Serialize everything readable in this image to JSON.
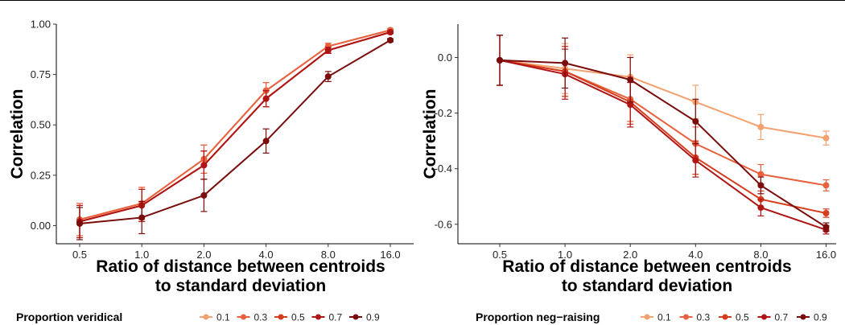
{
  "chart_data": [
    {
      "type": "line",
      "ylabel": "Correlation",
      "xlabel_line1": "Ratio of distance between centroids",
      "xlabel_line2": "to standard deviation",
      "categories": [
        "0.5",
        "1.0",
        "2.0",
        "4.0",
        "8.0",
        "16.0"
      ],
      "ylim": [
        -0.09,
        1.0
      ],
      "yticks": [
        0.0,
        0.25,
        0.5,
        0.75,
        1.0
      ],
      "ytick_labels": [
        "0.00",
        "0.25",
        "0.50",
        "0.75",
        "1.00"
      ],
      "legend_title": "Proportion veridical",
      "legend_position": "bottom",
      "series": [
        {
          "name": "0.1",
          "color": "#f4a170",
          "values": [
            0.03,
            0.11,
            0.33,
            0.67,
            0.89,
            0.97
          ],
          "errors": [
            0.08,
            0.08,
            0.07,
            0.04,
            0.015,
            0.007
          ]
        },
        {
          "name": "0.3",
          "color": "#e8613f",
          "values": [
            0.03,
            0.11,
            0.33,
            0.67,
            0.89,
            0.97
          ],
          "errors": [
            0.08,
            0.08,
            0.07,
            0.04,
            0.015,
            0.007
          ]
        },
        {
          "name": "0.5",
          "color": "#d63d1c",
          "values": [
            0.02,
            0.1,
            0.3,
            0.63,
            0.87,
            0.96
          ],
          "errors": [
            0.08,
            0.08,
            0.07,
            0.04,
            0.015,
            0.007
          ]
        },
        {
          "name": "0.7",
          "color": "#b01515",
          "values": [
            0.02,
            0.1,
            0.3,
            0.63,
            0.87,
            0.96
          ],
          "errors": [
            0.08,
            0.08,
            0.07,
            0.04,
            0.015,
            0.007
          ]
        },
        {
          "name": "0.9",
          "color": "#7a0c0c",
          "values": [
            0.01,
            0.04,
            0.15,
            0.42,
            0.74,
            0.92
          ],
          "errors": [
            0.08,
            0.08,
            0.08,
            0.06,
            0.025,
            0.008
          ]
        }
      ]
    },
    {
      "type": "line",
      "ylabel": "Correlation",
      "xlabel_line1": "Ratio of distance between centroids",
      "xlabel_line2": "to standard deviation",
      "categories": [
        "0.5",
        "1.0",
        "2.0",
        "4.0",
        "8.0",
        "16.0"
      ],
      "ylim": [
        -0.67,
        0.12
      ],
      "yticks": [
        -0.6,
        -0.4,
        -0.2,
        0.0
      ],
      "ytick_labels": [
        "-0.6",
        "-0.4",
        "-0.2",
        "0.0"
      ],
      "legend_title": "Proportion neg−raising",
      "legend_position": "bottom",
      "series": [
        {
          "name": "0.1",
          "color": "#f4a170",
          "values": [
            -0.01,
            -0.04,
            -0.07,
            -0.16,
            -0.25,
            -0.29
          ],
          "errors": [
            0.09,
            0.09,
            0.08,
            0.06,
            0.045,
            0.025
          ]
        },
        {
          "name": "0.3",
          "color": "#e8613f",
          "values": [
            -0.01,
            -0.05,
            -0.15,
            -0.31,
            -0.42,
            -0.46
          ],
          "errors": [
            0.09,
            0.09,
            0.08,
            0.06,
            0.035,
            0.02
          ]
        },
        {
          "name": "0.5",
          "color": "#d63d1c",
          "values": [
            -0.01,
            -0.05,
            -0.16,
            -0.36,
            -0.51,
            -0.56
          ],
          "errors": [
            0.09,
            0.09,
            0.08,
            0.06,
            0.03,
            0.015
          ]
        },
        {
          "name": "0.7",
          "color": "#b01515",
          "values": [
            -0.01,
            -0.06,
            -0.17,
            -0.37,
            -0.54,
            -0.62
          ],
          "errors": [
            0.09,
            0.09,
            0.08,
            0.06,
            0.03,
            0.015
          ]
        },
        {
          "name": "0.9",
          "color": "#7a0c0c",
          "values": [
            -0.01,
            -0.02,
            -0.08,
            -0.23,
            -0.46,
            -0.61
          ],
          "errors": [
            0.09,
            0.09,
            0.08,
            0.08,
            0.03,
            0.015
          ]
        }
      ]
    }
  ]
}
